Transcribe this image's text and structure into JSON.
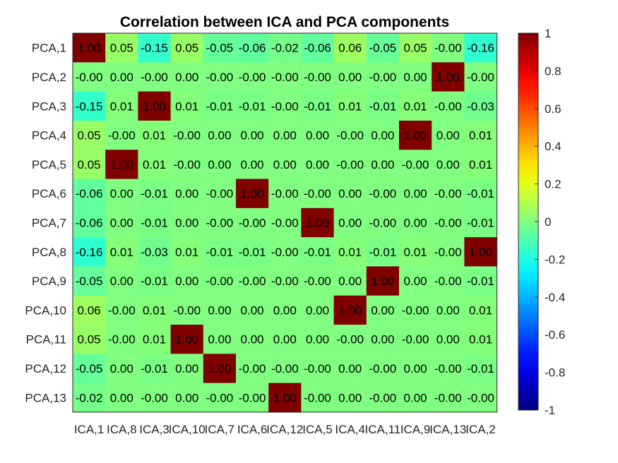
{
  "chart_data": {
    "type": "heatmap",
    "title": "Correlation between ICA and PCA components",
    "xlabel": "",
    "ylabel": "",
    "x_categories": [
      "ICA,1",
      "ICA,8",
      "ICA,3",
      "ICA,10",
      "ICA,7",
      "ICA,6",
      "ICA,12",
      "ICA,5",
      "ICA,4",
      "ICA,11",
      "ICA,9",
      "ICA,13",
      "ICA,2"
    ],
    "y_categories": [
      "PCA,1",
      "PCA,2",
      "PCA,3",
      "PCA,4",
      "PCA,5",
      "PCA,6",
      "PCA,7",
      "PCA,8",
      "PCA,9",
      "PCA,10",
      "PCA,11",
      "PCA,12",
      "PCA,13"
    ],
    "cell_labels": [
      [
        "1.00",
        "0.05",
        "-0.15",
        "0.05",
        "-0.05",
        "-0.06",
        "-0.02",
        "-0.06",
        "0.06",
        "-0.05",
        "0.05",
        "-0.00",
        "-0.16"
      ],
      [
        "-0.00",
        "0.00",
        "-0.00",
        "0.00",
        "-0.00",
        "-0.00",
        "-0.00",
        "-0.00",
        "0.00",
        "-0.00",
        "0.00",
        "1.00",
        "-0.00"
      ],
      [
        "-0.15",
        "0.01",
        "1.00",
        "0.01",
        "-0.01",
        "-0.01",
        "-0.00",
        "-0.01",
        "0.01",
        "-0.01",
        "0.01",
        "-0.00",
        "-0.03"
      ],
      [
        "0.05",
        "-0.00",
        "0.01",
        "-0.00",
        "0.00",
        "0.00",
        "0.00",
        "0.00",
        "-0.00",
        "0.00",
        "1.00",
        "0.00",
        "0.01"
      ],
      [
        "0.05",
        "1.00",
        "0.01",
        "-0.00",
        "0.00",
        "0.00",
        "0.00",
        "0.00",
        "-0.00",
        "0.00",
        "-0.00",
        "0.00",
        "0.01"
      ],
      [
        "-0.06",
        "0.00",
        "-0.01",
        "0.00",
        "-0.00",
        "1.00",
        "-0.00",
        "-0.00",
        "0.00",
        "-0.00",
        "0.00",
        "-0.00",
        "-0.01"
      ],
      [
        "-0.06",
        "0.00",
        "-0.01",
        "0.00",
        "-0.00",
        "-0.00",
        "-0.00",
        "1.00",
        "0.00",
        "-0.00",
        "0.00",
        "-0.00",
        "-0.01"
      ],
      [
        "-0.16",
        "0.01",
        "-0.03",
        "0.01",
        "-0.01",
        "-0.01",
        "-0.00",
        "-0.01",
        "0.01",
        "-0.01",
        "0.01",
        "-0.00",
        "1.00"
      ],
      [
        "-0.05",
        "0.00",
        "-0.01",
        "0.00",
        "-0.00",
        "-0.00",
        "-0.00",
        "-0.00",
        "0.00",
        "1.00",
        "0.00",
        "-0.00",
        "-0.01"
      ],
      [
        "0.06",
        "-0.00",
        "0.01",
        "-0.00",
        "0.00",
        "0.00",
        "0.00",
        "0.00",
        "1.00",
        "0.00",
        "-0.00",
        "0.00",
        "0.01"
      ],
      [
        "0.05",
        "-0.00",
        "0.01",
        "1.00",
        "0.00",
        "0.00",
        "0.00",
        "0.00",
        "-0.00",
        "0.00",
        "-0.00",
        "0.00",
        "0.01"
      ],
      [
        "-0.05",
        "0.00",
        "-0.01",
        "0.00",
        "1.00",
        "-0.00",
        "-0.00",
        "-0.00",
        "0.00",
        "-0.00",
        "0.00",
        "-0.00",
        "-0.01"
      ],
      [
        "-0.02",
        "0.00",
        "-0.00",
        "0.00",
        "-0.00",
        "-0.00",
        "1.00",
        "-0.00",
        "0.00",
        "-0.00",
        "0.00",
        "-0.00",
        "-0.00"
      ]
    ],
    "colormap": "jet",
    "clim": [
      -1,
      1
    ],
    "colorbar_ticks": [
      "-1",
      "-0.8",
      "-0.6",
      "-0.4",
      "-0.2",
      "0",
      "0.2",
      "0.4",
      "0.6",
      "0.8",
      "1"
    ],
    "colorbar_tick_values": [
      -1,
      -0.8,
      -0.6,
      -0.4,
      -0.2,
      0,
      0.2,
      0.4,
      0.6,
      0.8,
      1
    ],
    "colorbar_placement": "right",
    "grid": false
  }
}
